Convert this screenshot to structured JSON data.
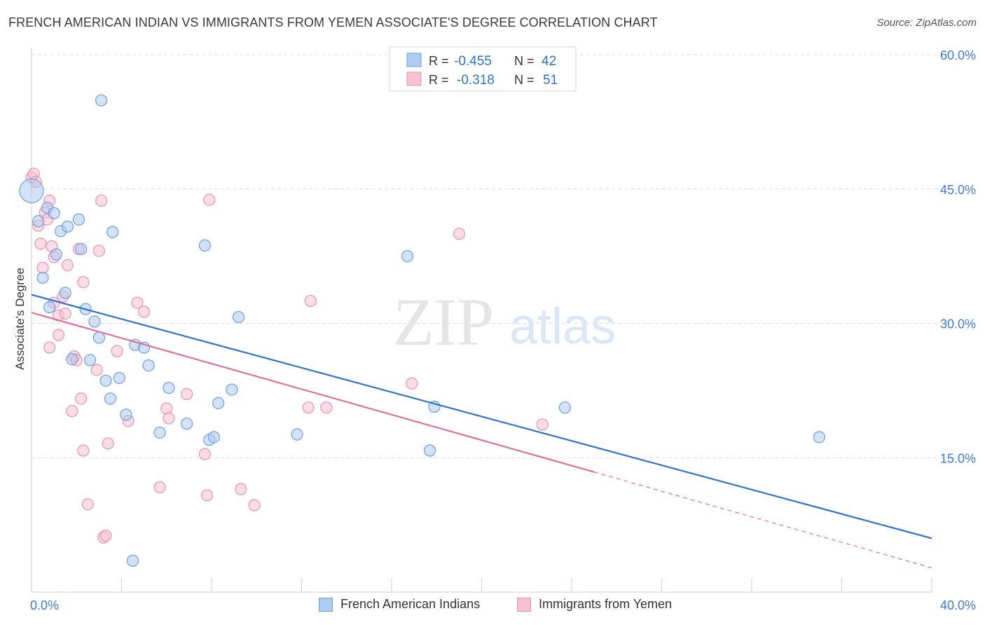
{
  "title": "FRENCH AMERICAN INDIAN VS IMMIGRANTS FROM YEMEN ASSOCIATE'S DEGREE CORRELATION CHART",
  "source": "Source: ZipAtlas.com",
  "watermark": {
    "zip": "ZIP",
    "atlas": "atlas"
  },
  "colors": {
    "blue_fill": "#aecbf0",
    "blue_stroke": "#6d9de0",
    "blue_line": "#2f72d0",
    "pink_fill": "#f8c1d2",
    "pink_stroke": "#e693ae",
    "pink_line": "#e0709a",
    "axis_text": "#3f7ccf",
    "grid": "#dedede"
  },
  "stats_legend": {
    "blue": {
      "r_label": "R =",
      "r_value": "-0.455",
      "n_label": "N =",
      "n_value": "42"
    },
    "pink": {
      "r_label": "R =",
      "r_value": "-0.318",
      "n_label": "N =",
      "n_value": "51"
    }
  },
  "chart_data": {
    "type": "scatter",
    "title": "FRENCH AMERICAN INDIAN VS IMMIGRANTS FROM YEMEN ASSOCIATE'S DEGREE CORRELATION CHART",
    "xlabel": "",
    "ylabel": "Associate's Degree",
    "xlim": [
      0,
      40
    ],
    "ylim": [
      0,
      60
    ],
    "x_tick_labels": [
      "0.0%",
      "40.0%"
    ],
    "y_ticks": [
      15,
      30,
      45,
      60
    ],
    "y_tick_labels": [
      "15.0%",
      "30.0%",
      "45.0%",
      "60.0%"
    ],
    "grid": true,
    "legend_position": "bottom",
    "series": [
      {
        "name": "French American Indians",
        "color": "#aecbf0",
        "points": [
          [
            0.0,
            44.8
          ],
          [
            0.3,
            41.4
          ],
          [
            0.5,
            35.1
          ],
          [
            0.7,
            42.9
          ],
          [
            0.8,
            31.8
          ],
          [
            1.0,
            42.3
          ],
          [
            1.1,
            37.7
          ],
          [
            1.3,
            40.3
          ],
          [
            1.5,
            33.4
          ],
          [
            1.6,
            40.8
          ],
          [
            1.8,
            26.0
          ],
          [
            2.1,
            41.6
          ],
          [
            2.2,
            38.3
          ],
          [
            2.4,
            31.6
          ],
          [
            2.6,
            25.9
          ],
          [
            2.8,
            30.2
          ],
          [
            3.0,
            28.4
          ],
          [
            3.1,
            54.9
          ],
          [
            3.3,
            23.6
          ],
          [
            3.5,
            21.6
          ],
          [
            3.6,
            40.2
          ],
          [
            3.9,
            23.9
          ],
          [
            4.2,
            19.8
          ],
          [
            4.6,
            27.6
          ],
          [
            4.5,
            3.5
          ],
          [
            5.0,
            27.3
          ],
          [
            5.2,
            25.3
          ],
          [
            5.7,
            17.8
          ],
          [
            6.1,
            22.8
          ],
          [
            6.9,
            18.8
          ],
          [
            7.7,
            38.7
          ],
          [
            7.9,
            17.0
          ],
          [
            8.1,
            17.3
          ],
          [
            8.3,
            21.1
          ],
          [
            8.9,
            22.6
          ],
          [
            9.2,
            30.7
          ],
          [
            11.8,
            17.6
          ],
          [
            16.7,
            37.5
          ],
          [
            17.7,
            15.8
          ],
          [
            17.9,
            20.7
          ],
          [
            23.7,
            20.6
          ],
          [
            35.0,
            17.3
          ]
        ]
      },
      {
        "name": "Immigrants from Yemen",
        "color": "#f8c1d2",
        "points": [
          [
            0.0,
            46.3
          ],
          [
            0.1,
            46.7
          ],
          [
            0.2,
            45.8
          ],
          [
            0.3,
            40.9
          ],
          [
            0.4,
            38.9
          ],
          [
            0.5,
            36.2
          ],
          [
            0.6,
            42.4
          ],
          [
            0.7,
            41.6
          ],
          [
            0.8,
            27.3
          ],
          [
            0.8,
            43.7
          ],
          [
            0.9,
            38.6
          ],
          [
            1.0,
            37.4
          ],
          [
            1.0,
            32.3
          ],
          [
            1.2,
            30.9
          ],
          [
            1.2,
            28.7
          ],
          [
            1.4,
            33.0
          ],
          [
            1.5,
            31.1
          ],
          [
            1.6,
            36.5
          ],
          [
            1.8,
            20.2
          ],
          [
            1.9,
            26.3
          ],
          [
            2.0,
            25.9
          ],
          [
            2.1,
            38.3
          ],
          [
            2.2,
            21.6
          ],
          [
            2.3,
            34.6
          ],
          [
            2.3,
            15.8
          ],
          [
            2.5,
            9.8
          ],
          [
            2.9,
            24.8
          ],
          [
            3.0,
            38.1
          ],
          [
            3.1,
            43.7
          ],
          [
            3.2,
            6.1
          ],
          [
            3.3,
            6.3
          ],
          [
            3.4,
            16.6
          ],
          [
            3.8,
            26.9
          ],
          [
            4.3,
            19.1
          ],
          [
            4.7,
            32.3
          ],
          [
            5.0,
            31.3
          ],
          [
            5.7,
            11.7
          ],
          [
            6.0,
            20.5
          ],
          [
            6.1,
            19.4
          ],
          [
            6.9,
            22.1
          ],
          [
            7.7,
            15.4
          ],
          [
            7.8,
            10.8
          ],
          [
            7.9,
            43.8
          ],
          [
            9.3,
            11.5
          ],
          [
            9.9,
            9.7
          ],
          [
            12.3,
            20.6
          ],
          [
            12.4,
            32.5
          ],
          [
            13.1,
            20.6
          ],
          [
            16.9,
            23.3
          ],
          [
            19.0,
            40.0
          ],
          [
            22.7,
            18.7
          ]
        ]
      }
    ],
    "trend_lines": [
      {
        "series": "French American Indians",
        "x": [
          0,
          40
        ],
        "y": [
          33.2,
          6.0
        ]
      },
      {
        "series": "Immigrants from Yemen",
        "x": [
          0,
          25
        ],
        "y": [
          31.2,
          13.4
        ],
        "dashed_extension_to": [
          40,
          2.7
        ]
      }
    ]
  }
}
